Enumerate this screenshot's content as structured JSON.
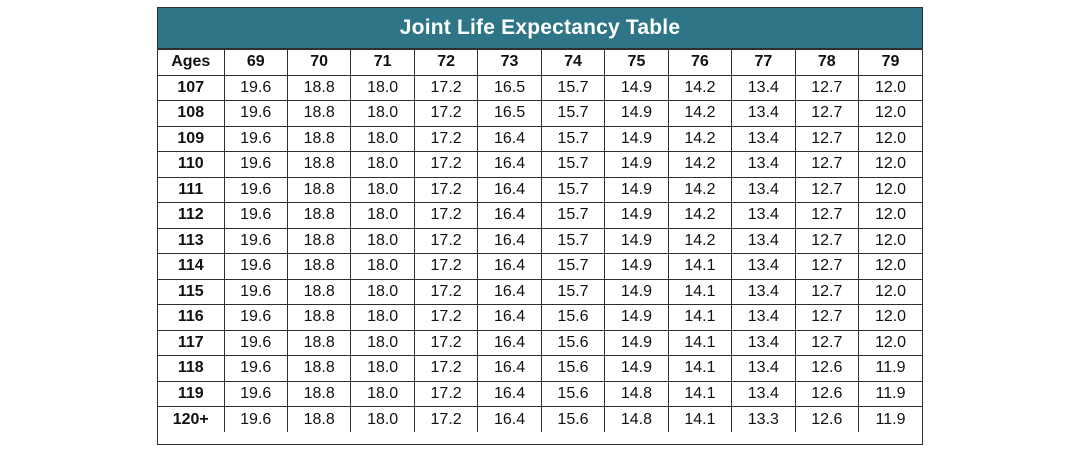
{
  "title": "Joint Life Expectancy Table",
  "header": {
    "corner": "Ages",
    "columns": [
      "69",
      "70",
      "71",
      "72",
      "73",
      "74",
      "75",
      "76",
      "77",
      "78",
      "79"
    ]
  },
  "rows": [
    {
      "age": "107",
      "values": [
        "19.6",
        "18.8",
        "18.0",
        "17.2",
        "16.5",
        "15.7",
        "14.9",
        "14.2",
        "13.4",
        "12.7",
        "12.0"
      ]
    },
    {
      "age": "108",
      "values": [
        "19.6",
        "18.8",
        "18.0",
        "17.2",
        "16.5",
        "15.7",
        "14.9",
        "14.2",
        "13.4",
        "12.7",
        "12.0"
      ]
    },
    {
      "age": "109",
      "values": [
        "19.6",
        "18.8",
        "18.0",
        "17.2",
        "16.4",
        "15.7",
        "14.9",
        "14.2",
        "13.4",
        "12.7",
        "12.0"
      ]
    },
    {
      "age": "110",
      "values": [
        "19.6",
        "18.8",
        "18.0",
        "17.2",
        "16.4",
        "15.7",
        "14.9",
        "14.2",
        "13.4",
        "12.7",
        "12.0"
      ]
    },
    {
      "age": "111",
      "values": [
        "19.6",
        "18.8",
        "18.0",
        "17.2",
        "16.4",
        "15.7",
        "14.9",
        "14.2",
        "13.4",
        "12.7",
        "12.0"
      ]
    },
    {
      "age": "112",
      "values": [
        "19.6",
        "18.8",
        "18.0",
        "17.2",
        "16.4",
        "15.7",
        "14.9",
        "14.2",
        "13.4",
        "12.7",
        "12.0"
      ]
    },
    {
      "age": "113",
      "values": [
        "19.6",
        "18.8",
        "18.0",
        "17.2",
        "16.4",
        "15.7",
        "14.9",
        "14.2",
        "13.4",
        "12.7",
        "12.0"
      ]
    },
    {
      "age": "114",
      "values": [
        "19.6",
        "18.8",
        "18.0",
        "17.2",
        "16.4",
        "15.7",
        "14.9",
        "14.1",
        "13.4",
        "12.7",
        "12.0"
      ]
    },
    {
      "age": "115",
      "values": [
        "19.6",
        "18.8",
        "18.0",
        "17.2",
        "16.4",
        "15.7",
        "14.9",
        "14.1",
        "13.4",
        "12.7",
        "12.0"
      ]
    },
    {
      "age": "116",
      "values": [
        "19.6",
        "18.8",
        "18.0",
        "17.2",
        "16.4",
        "15.6",
        "14.9",
        "14.1",
        "13.4",
        "12.7",
        "12.0"
      ]
    },
    {
      "age": "117",
      "values": [
        "19.6",
        "18.8",
        "18.0",
        "17.2",
        "16.4",
        "15.6",
        "14.9",
        "14.1",
        "13.4",
        "12.7",
        "12.0"
      ]
    },
    {
      "age": "118",
      "values": [
        "19.6",
        "18.8",
        "18.0",
        "17.2",
        "16.4",
        "15.6",
        "14.9",
        "14.1",
        "13.4",
        "12.6",
        "11.9"
      ]
    },
    {
      "age": "119",
      "values": [
        "19.6",
        "18.8",
        "18.0",
        "17.2",
        "16.4",
        "15.6",
        "14.8",
        "14.1",
        "13.4",
        "12.6",
        "11.9"
      ]
    },
    {
      "age": "120+",
      "values": [
        "19.6",
        "18.8",
        "18.0",
        "17.2",
        "16.4",
        "15.6",
        "14.8",
        "14.1",
        "13.3",
        "12.6",
        "11.9"
      ]
    }
  ],
  "colors": {
    "title_background": "#2e7587",
    "title_text": "#ffffff",
    "grid_lines": "#2f2f2f"
  }
}
